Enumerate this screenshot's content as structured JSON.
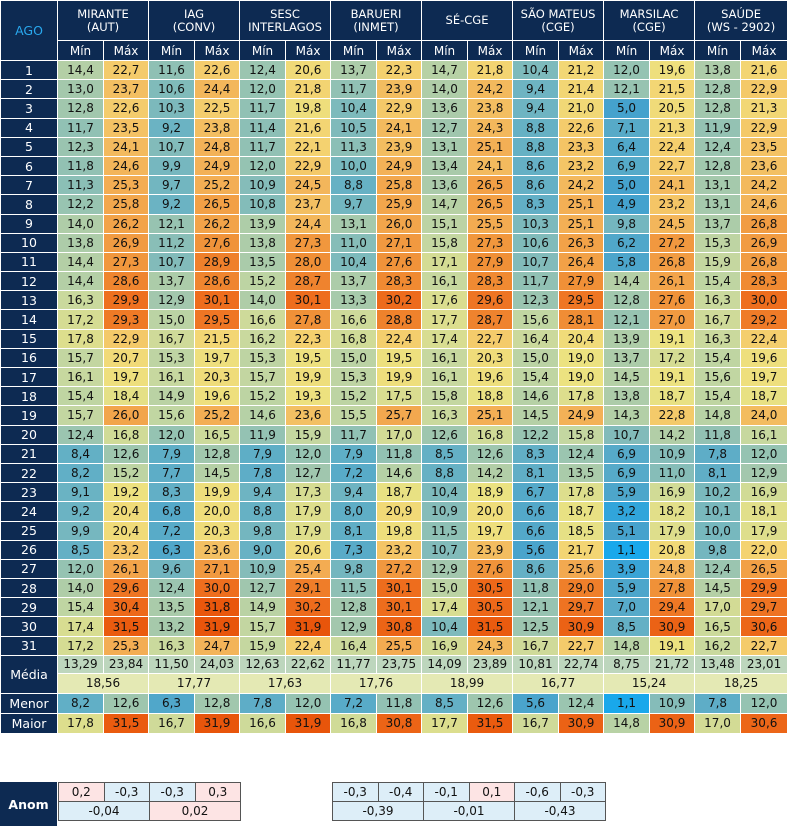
{
  "header": {
    "day_label": "AGO",
    "min_label": "Mín",
    "max_label": "Máx",
    "stations": [
      {
        "line1": "MIRANTE",
        "line2": "(AUT)"
      },
      {
        "line1": "IAG",
        "line2": "(CONV)"
      },
      {
        "line1": "SESC",
        "line2": "INTERLAGOS"
      },
      {
        "line1": "BARUERI",
        "line2": "(INMET)"
      },
      {
        "line1": "SÉ-CGE",
        "line2": ""
      },
      {
        "line1": "SÃO MATEUS",
        "line2": "(CGE)"
      },
      {
        "line1": "MARSILAC",
        "line2": "(CGE)"
      },
      {
        "line1": "SAÚDE",
        "line2": "(WS - 2902)"
      }
    ]
  },
  "rows": [
    [
      "1",
      "14,4",
      "22,7",
      "11,6",
      "22,6",
      "12,4",
      "20,6",
      "13,7",
      "22,3",
      "14,7",
      "21,8",
      "10,4",
      "21,2",
      "12,0",
      "19,6",
      "13,8",
      "21,6"
    ],
    [
      "2",
      "13,0",
      "23,7",
      "10,6",
      "24,4",
      "12,0",
      "21,8",
      "11,7",
      "23,9",
      "14,0",
      "24,2",
      "9,4",
      "21,4",
      "12,1",
      "21,5",
      "12,8",
      "22,9"
    ],
    [
      "3",
      "12,8",
      "22,6",
      "10,3",
      "22,5",
      "11,7",
      "19,8",
      "10,4",
      "22,9",
      "13,6",
      "23,8",
      "9,4",
      "21,0",
      "5,0",
      "20,5",
      "12,8",
      "21,3"
    ],
    [
      "4",
      "11,7",
      "23,5",
      "9,2",
      "23,8",
      "11,4",
      "21,6",
      "10,5",
      "24,1",
      "12,7",
      "24,3",
      "8,8",
      "22,6",
      "7,1",
      "21,3",
      "11,9",
      "22,9"
    ],
    [
      "5",
      "12,3",
      "24,1",
      "10,7",
      "24,8",
      "11,7",
      "22,1",
      "11,3",
      "23,9",
      "13,1",
      "25,1",
      "8,8",
      "23,3",
      "6,4",
      "22,4",
      "12,4",
      "23,5"
    ],
    [
      "6",
      "11,8",
      "24,6",
      "9,9",
      "24,9",
      "12,0",
      "22,9",
      "10,0",
      "24,9",
      "13,4",
      "24,1",
      "8,6",
      "23,2",
      "6,9",
      "22,7",
      "12,8",
      "23,6"
    ],
    [
      "7",
      "11,3",
      "25,3",
      "9,7",
      "25,2",
      "10,9",
      "24,5",
      "8,8",
      "25,8",
      "13,6",
      "26,5",
      "8,6",
      "24,2",
      "5,0",
      "24,1",
      "13,1",
      "24,2"
    ],
    [
      "8",
      "12,2",
      "25,8",
      "9,2",
      "26,5",
      "10,8",
      "23,7",
      "9,7",
      "25,9",
      "14,7",
      "26,5",
      "8,3",
      "25,1",
      "4,9",
      "23,2",
      "13,1",
      "24,6"
    ],
    [
      "9",
      "14,0",
      "26,2",
      "12,1",
      "26,2",
      "13,9",
      "24,4",
      "13,1",
      "26,0",
      "15,1",
      "25,5",
      "10,3",
      "25,1",
      "9,8",
      "24,5",
      "13,7",
      "26,8"
    ],
    [
      "10",
      "13,8",
      "26,9",
      "11,2",
      "27,6",
      "13,8",
      "27,3",
      "11,0",
      "27,1",
      "15,8",
      "27,3",
      "10,6",
      "26,3",
      "6,2",
      "27,2",
      "15,3",
      "26,9"
    ],
    [
      "11",
      "14,4",
      "27,3",
      "10,7",
      "28,9",
      "13,5",
      "28,0",
      "10,4",
      "27,6",
      "17,1",
      "27,9",
      "10,7",
      "26,4",
      "5,8",
      "26,8",
      "15,9",
      "26,8"
    ],
    [
      "12",
      "14,4",
      "28,6",
      "13,7",
      "28,6",
      "15,2",
      "28,7",
      "13,7",
      "28,3",
      "16,1",
      "28,3",
      "11,7",
      "27,9",
      "14,4",
      "26,1",
      "15,4",
      "28,3"
    ],
    [
      "13",
      "16,3",
      "29,9",
      "12,9",
      "30,1",
      "14,0",
      "30,1",
      "13,3",
      "30,2",
      "17,6",
      "29,6",
      "12,3",
      "29,5",
      "12,8",
      "27,6",
      "16,3",
      "30,0"
    ],
    [
      "14",
      "17,2",
      "29,3",
      "15,0",
      "29,5",
      "16,6",
      "27,8",
      "16,6",
      "28,8",
      "17,7",
      "28,7",
      "15,6",
      "28,1",
      "12,1",
      "27,0",
      "16,7",
      "29,2"
    ],
    [
      "15",
      "17,8",
      "22,9",
      "16,7",
      "21,5",
      "16,2",
      "22,3",
      "16,8",
      "22,4",
      "17,4",
      "22,7",
      "16,4",
      "20,4",
      "13,9",
      "19,1",
      "16,3",
      "22,4"
    ],
    [
      "16",
      "15,7",
      "20,7",
      "15,3",
      "19,7",
      "15,3",
      "19,5",
      "15,0",
      "19,5",
      "16,1",
      "20,3",
      "15,0",
      "19,0",
      "13,7",
      "17,2",
      "15,4",
      "19,6"
    ],
    [
      "17",
      "16,1",
      "19,7",
      "16,1",
      "20,3",
      "15,7",
      "19,9",
      "15,3",
      "19,9",
      "16,1",
      "19,6",
      "15,4",
      "19,0",
      "14,5",
      "19,1",
      "15,6",
      "19,7"
    ],
    [
      "18",
      "15,4",
      "18,4",
      "14,9",
      "19,6",
      "15,2",
      "19,3",
      "15,2",
      "17,5",
      "15,8",
      "18,8",
      "14,6",
      "17,8",
      "13,8",
      "18,7",
      "15,4",
      "18,7"
    ],
    [
      "19",
      "15,7",
      "26,0",
      "15,6",
      "25,2",
      "14,6",
      "23,6",
      "15,5",
      "25,7",
      "16,3",
      "25,1",
      "14,5",
      "24,9",
      "14,3",
      "22,8",
      "14,8",
      "24,0"
    ],
    [
      "20",
      "12,4",
      "16,8",
      "12,0",
      "16,5",
      "11,9",
      "15,9",
      "11,7",
      "17,0",
      "12,6",
      "16,8",
      "12,2",
      "15,8",
      "10,7",
      "14,2",
      "11,8",
      "16,1"
    ],
    [
      "21",
      "8,4",
      "12,6",
      "7,9",
      "12,8",
      "7,9",
      "12,0",
      "7,9",
      "11,8",
      "8,5",
      "12,6",
      "8,3",
      "12,4",
      "6,9",
      "10,9",
      "7,8",
      "12,0"
    ],
    [
      "22",
      "8,2",
      "15,2",
      "7,7",
      "14,5",
      "7,8",
      "12,7",
      "7,2",
      "14,6",
      "8,8",
      "14,2",
      "8,1",
      "13,5",
      "6,9",
      "11,0",
      "8,1",
      "12,9"
    ],
    [
      "23",
      "9,1",
      "19,2",
      "8,3",
      "19,9",
      "9,4",
      "17,3",
      "9,4",
      "18,7",
      "10,4",
      "18,9",
      "6,7",
      "17,8",
      "5,9",
      "16,9",
      "10,2",
      "16,9"
    ],
    [
      "24",
      "9,2",
      "20,4",
      "6,8",
      "20,0",
      "8,8",
      "17,9",
      "8,0",
      "20,9",
      "10,9",
      "20,0",
      "6,6",
      "18,7",
      "3,2",
      "18,2",
      "10,1",
      "18,1"
    ],
    [
      "25",
      "9,9",
      "20,4",
      "7,2",
      "20,3",
      "9,8",
      "17,9",
      "8,1",
      "19,8",
      "11,5",
      "19,7",
      "6,6",
      "18,5",
      "5,1",
      "17,9",
      "10,0",
      "17,9"
    ],
    [
      "26",
      "8,5",
      "23,2",
      "6,3",
      "23,6",
      "9,0",
      "20,6",
      "7,3",
      "23,2",
      "10,7",
      "23,9",
      "5,6",
      "21,7",
      "1,1",
      "20,8",
      "9,8",
      "22,0"
    ],
    [
      "27",
      "12,0",
      "26,1",
      "9,6",
      "27,1",
      "10,9",
      "25,4",
      "9,8",
      "27,2",
      "12,9",
      "27,6",
      "8,6",
      "25,6",
      "3,9",
      "24,8",
      "12,4",
      "26,5"
    ],
    [
      "28",
      "14,0",
      "29,6",
      "12,4",
      "30,0",
      "12,7",
      "29,1",
      "11,5",
      "30,1",
      "15,0",
      "30,5",
      "11,8",
      "29,0",
      "5,9",
      "27,8",
      "14,5",
      "29,9"
    ],
    [
      "29",
      "15,4",
      "30,4",
      "13,5",
      "31,8",
      "14,9",
      "30,2",
      "12,8",
      "30,1",
      "17,4",
      "30,5",
      "12,1",
      "29,7",
      "7,0",
      "29,4",
      "17,0",
      "29,7"
    ],
    [
      "30",
      "17,4",
      "31,5",
      "13,2",
      "31,9",
      "15,7",
      "31,9",
      "12,9",
      "30,8",
      "10,4",
      "31,5",
      "12,5",
      "30,9",
      "8,5",
      "30,9",
      "16,5",
      "30,6"
    ],
    [
      "31",
      "17,2",
      "25,3",
      "16,3",
      "24,7",
      "15,9",
      "22,4",
      "16,4",
      "25,5",
      "16,9",
      "24,3",
      "16,7",
      "22,7",
      "14,8",
      "19,1",
      "16,2",
      "22,7"
    ]
  ],
  "summary": {
    "media_label": "Média",
    "media": [
      "13,29",
      "23,84",
      "11,50",
      "24,03",
      "12,63",
      "22,62",
      "11,77",
      "23,75",
      "14,09",
      "23,89",
      "10,81",
      "22,74",
      "8,75",
      "21,72",
      "13,48",
      "23,01"
    ],
    "averages": [
      "18,56",
      "17,77",
      "17,63",
      "17,76",
      "18,99",
      "16,77",
      "15,24",
      "18,25"
    ],
    "menor_label": "Menor",
    "menor": [
      "8,2",
      "12,6",
      "6,3",
      "12,8",
      "7,8",
      "12,0",
      "7,2",
      "11,8",
      "8,5",
      "12,6",
      "5,6",
      "12,4",
      "1,1",
      "10,9",
      "7,8",
      "12,0"
    ],
    "maior_label": "Maior",
    "maior": [
      "17,8",
      "31,5",
      "16,7",
      "31,9",
      "16,6",
      "31,9",
      "16,8",
      "30,8",
      "17,7",
      "31,5",
      "16,7",
      "30,9",
      "14,8",
      "30,9",
      "17,0",
      "30,6"
    ]
  },
  "anomaly": {
    "label": "Anom",
    "left_top": [
      "0,2",
      "-0,3",
      "-0,3",
      "0,3"
    ],
    "left_bottom": [
      "-0,04",
      "0,02"
    ],
    "right_top": [
      "-0,3",
      "-0,4",
      "-0,1",
      "0,1",
      "-0,6",
      "-0,3"
    ],
    "right_bottom": [
      "-0,39",
      "-0,01",
      "-0,43"
    ]
  }
}
